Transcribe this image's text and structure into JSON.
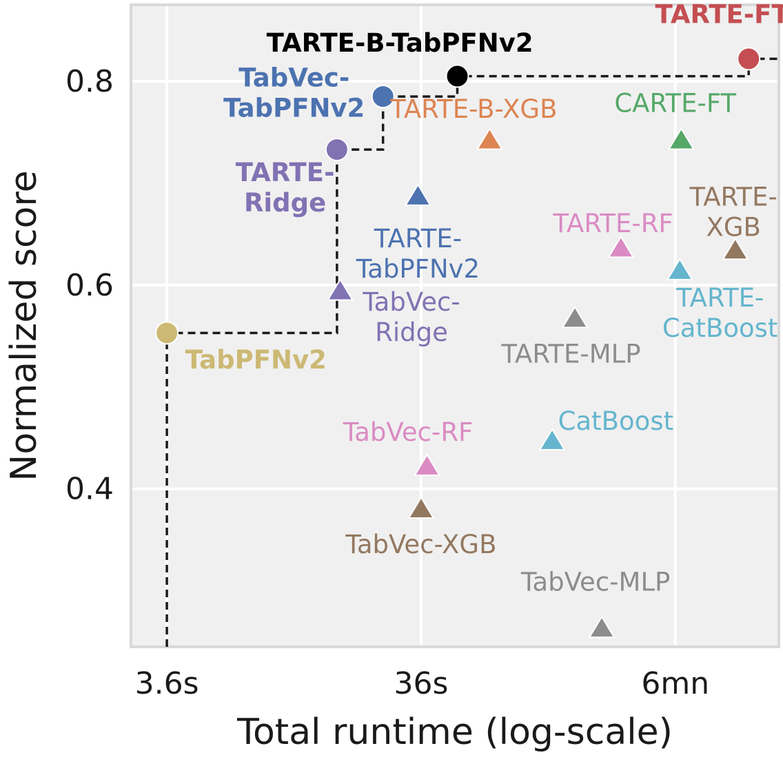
{
  "chart_data": {
    "type": "scatter",
    "xlabel": "Total runtime (log-scale)",
    "ylabel": "Normalized score",
    "x_scale": "log",
    "x_unit": "seconds",
    "xlim": [
      2.6,
      920
    ],
    "ylim": [
      0.245,
      0.875
    ],
    "xticks": [
      {
        "value": 3.6,
        "label": "3.6s"
      },
      {
        "value": 36,
        "label": "36s"
      },
      {
        "value": 360,
        "label": "6mn"
      }
    ],
    "yticks": [
      {
        "value": 0.4,
        "label": "0.4"
      },
      {
        "value": 0.6,
        "label": "0.6"
      },
      {
        "value": 0.8,
        "label": "0.8"
      }
    ],
    "grid": true,
    "pareto_front": [
      {
        "x": 3.6,
        "y": 0.245
      },
      {
        "x": 3.6,
        "y": 0.553
      },
      {
        "x": 16.8,
        "y": 0.553
      },
      {
        "x": 16.8,
        "y": 0.733
      },
      {
        "x": 16.8,
        "y": 0.733
      },
      {
        "x": 25.5,
        "y": 0.733
      },
      {
        "x": 25.5,
        "y": 0.785
      },
      {
        "x": 50,
        "y": 0.785
      },
      {
        "x": 50,
        "y": 0.805
      },
      {
        "x": 700,
        "y": 0.805
      },
      {
        "x": 700,
        "y": 0.822
      },
      {
        "x": 920,
        "y": 0.822
      }
    ],
    "points": [
      {
        "name": "TabPFNv2",
        "x": 3.6,
        "y": 0.553,
        "marker": "circle",
        "color": "#ccb974",
        "bold": true
      },
      {
        "name": "TARTE-Ridge",
        "x": 16.8,
        "y": 0.733,
        "marker": "circle",
        "color": "#8172b3",
        "bold": true
      },
      {
        "name": "TabVec-TabPFNv2",
        "x": 25.5,
        "y": 0.785,
        "marker": "circle",
        "color": "#4c72b0",
        "bold": true
      },
      {
        "name": "TARTE-B-TabPFNv2",
        "x": 50,
        "y": 0.805,
        "marker": "circle",
        "color": "#000000",
        "bold": true
      },
      {
        "name": "TARTE-FT",
        "x": 700,
        "y": 0.822,
        "marker": "circle",
        "color": "#c44e52",
        "bold": true
      },
      {
        "name": "TabVec-Ridge",
        "x": 17.3,
        "y": 0.594,
        "marker": "triangle",
        "color": "#8172b3",
        "bold": false
      },
      {
        "name": "TARTE-TabPFNv2",
        "x": 35,
        "y": 0.687,
        "marker": "triangle",
        "color": "#4c72b0",
        "bold": false
      },
      {
        "name": "TARTE-B-XGB",
        "x": 67,
        "y": 0.742,
        "marker": "triangle",
        "color": "#dd8452",
        "bold": false
      },
      {
        "name": "CARTE-FT",
        "x": 380,
        "y": 0.742,
        "marker": "triangle",
        "color": "#55a868",
        "bold": false
      },
      {
        "name": "TARTE-RF",
        "x": 220,
        "y": 0.636,
        "marker": "triangle",
        "color": "#da8bc3",
        "bold": false
      },
      {
        "name": "TARTE-XGB",
        "x": 620,
        "y": 0.634,
        "marker": "triangle",
        "color": "#937860",
        "bold": false
      },
      {
        "name": "TARTE-CatBoost",
        "x": 375,
        "y": 0.614,
        "marker": "triangle",
        "color": "#64b5cd",
        "bold": false
      },
      {
        "name": "TARTE-MLP",
        "x": 145,
        "y": 0.567,
        "marker": "triangle",
        "color": "#8c8c8c",
        "bold": false
      },
      {
        "name": "CatBoost",
        "x": 118,
        "y": 0.447,
        "marker": "triangle",
        "color": "#64b5cd",
        "bold": false
      },
      {
        "name": "TabVec-RF",
        "x": 38,
        "y": 0.422,
        "marker": "triangle",
        "color": "#da8bc3",
        "bold": false
      },
      {
        "name": "TabVec-XGB",
        "x": 36,
        "y": 0.38,
        "marker": "triangle",
        "color": "#937860",
        "bold": false
      },
      {
        "name": "TabVec-MLP",
        "x": 185,
        "y": 0.263,
        "marker": "triangle",
        "color": "#8c8c8c",
        "bold": false
      }
    ],
    "labels": [
      {
        "point": "TabPFNv2",
        "lines": [
          "TabPFNv2"
        ],
        "x": 4.25,
        "y": 0.518,
        "anchor": "start"
      },
      {
        "point": "TARTE-Ridge",
        "lines": [
          "TARTE-",
          "Ridge"
        ],
        "x": 10.5,
        "y": 0.702,
        "anchor": "middle"
      },
      {
        "point": "TabVec-TabPFNv2",
        "lines": [
          "TabVec-",
          "TabPFNv2"
        ],
        "x": 11.4,
        "y": 0.795,
        "anchor": "middle"
      },
      {
        "point": "TARTE-B-TabPFNv2",
        "lines": [
          "TARTE-B-TabPFNv2"
        ],
        "x": 29.7,
        "y": 0.829,
        "anchor": "middle"
      },
      {
        "point": "TARTE-FT",
        "lines": [
          "TARTE-FT"
        ],
        "x": 550,
        "y": 0.857,
        "anchor": "middle"
      },
      {
        "point": "TabVec-Ridge",
        "lines": [
          "TabVec-",
          "Ridge"
        ],
        "x": 33,
        "y": 0.575,
        "anchor": "middle"
      },
      {
        "point": "TARTE-TabPFNv2",
        "lines": [
          "TARTE-",
          "TabPFNv2"
        ],
        "x": 35,
        "y": 0.637,
        "anchor": "middle"
      },
      {
        "point": "TARTE-B-XGB",
        "lines": [
          "TARTE-B-XGB"
        ],
        "x": 58,
        "y": 0.764,
        "anchor": "middle"
      },
      {
        "point": "CARTE-FT",
        "lines": [
          "CARTE-FT"
        ],
        "x": 360,
        "y": 0.77,
        "anchor": "middle"
      },
      {
        "point": "TARTE-RF",
        "lines": [
          "TARTE-RF"
        ],
        "x": 205,
        "y": 0.652,
        "anchor": "middle"
      },
      {
        "point": "TARTE-XGB",
        "lines": [
          "TARTE-",
          "XGB"
        ],
        "x": 610,
        "y": 0.678,
        "anchor": "middle"
      },
      {
        "point": "TARTE-CatBoost",
        "lines": [
          "TARTE-",
          "CatBoost"
        ],
        "x": 540,
        "y": 0.579,
        "anchor": "middle"
      },
      {
        "point": "TARTE-MLP",
        "lines": [
          "TARTE-MLP"
        ],
        "x": 140,
        "y": 0.524,
        "anchor": "middle"
      },
      {
        "point": "CatBoost",
        "lines": [
          "CatBoost"
        ],
        "x": 210,
        "y": 0.458,
        "anchor": "middle"
      },
      {
        "point": "TabVec-RF",
        "lines": [
          "TabVec-RF"
        ],
        "x": 32,
        "y": 0.447,
        "anchor": "middle"
      },
      {
        "point": "TabVec-XGB",
        "lines": [
          "TabVec-XGB"
        ],
        "x": 36,
        "y": 0.337,
        "anchor": "middle"
      },
      {
        "point": "TabVec-MLP",
        "lines": [
          "TabVec-MLP"
        ],
        "x": 175,
        "y": 0.3,
        "anchor": "middle"
      }
    ]
  }
}
